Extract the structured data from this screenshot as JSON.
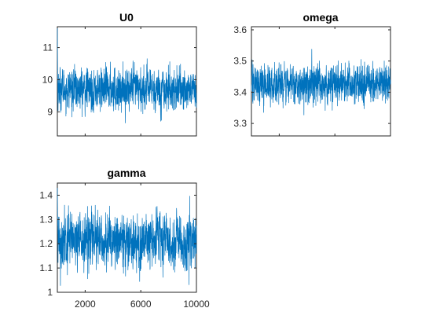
{
  "figure": {
    "background": "#ffffff",
    "trace_color": "#0072BD"
  },
  "chart_data": [
    {
      "type": "line",
      "title": "U0",
      "xlabel": "",
      "ylabel": "",
      "xlim": [
        1,
        10000
      ],
      "ylim": [
        8.25,
        11.65
      ],
      "yticks": [
        9,
        10,
        11
      ],
      "yticklabels": [
        "9",
        "10",
        "11"
      ],
      "xticks": [
        2000,
        6000,
        10000
      ],
      "xticklabels": [],
      "series": [
        {
          "name": "U0",
          "n": 10000,
          "start": 11.6,
          "mean": 9.7,
          "sd": 0.32,
          "ac": 0.35,
          "min_shown": 8.25,
          "max_shown": 11.6
        }
      ]
    },
    {
      "type": "line",
      "title": "omega",
      "xlabel": "",
      "ylabel": "",
      "xlim": [
        1,
        10000
      ],
      "ylim": [
        3.26,
        3.61
      ],
      "yticks": [
        3.3,
        3.4,
        3.5,
        3.6
      ],
      "yticklabels": [
        "3.3",
        "3.4",
        "3.5",
        "3.6"
      ],
      "xticks": [
        2000,
        6000,
        10000
      ],
      "xticklabels": [],
      "series": [
        {
          "name": "omega",
          "n": 10000,
          "start": 3.42,
          "mean": 3.425,
          "sd": 0.03,
          "ac": 0.3,
          "min_shown": 3.29,
          "max_shown": 3.56
        }
      ]
    },
    {
      "type": "line",
      "title": "gamma",
      "xlabel": "",
      "ylabel": "",
      "xlim": [
        1,
        10000
      ],
      "ylim": [
        1.0,
        1.45
      ],
      "yticks": [
        1,
        1.1,
        1.2,
        1.3,
        1.4
      ],
      "yticklabels": [
        "1",
        "1.1",
        "1.2",
        "1.3",
        "1.4"
      ],
      "xticks": [
        2000,
        6000,
        10000
      ],
      "xticklabels": [
        "2000",
        "6000",
        "10000"
      ],
      "series": [
        {
          "name": "gamma",
          "n": 10000,
          "start": 1.43,
          "mean": 1.21,
          "sd": 0.055,
          "ac": 0.35,
          "min_shown": 1.02,
          "max_shown": 1.44
        }
      ]
    }
  ]
}
